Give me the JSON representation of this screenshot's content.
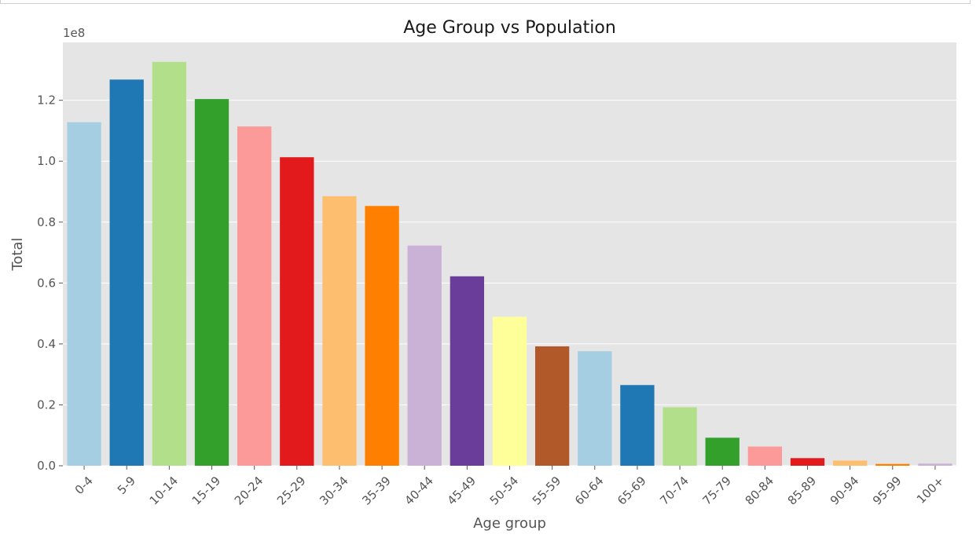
{
  "chart_data": {
    "type": "bar",
    "title": "Age Group vs Population",
    "xlabel": "Age group",
    "ylabel": "Total",
    "y_offset_text": "1e8",
    "ylim": [
      0,
      1.39
    ],
    "yticks": [
      0.0,
      0.2,
      0.4,
      0.6,
      0.8,
      1.0,
      1.2
    ],
    "ytick_labels": [
      "0.0",
      "0.2",
      "0.4",
      "0.6",
      "0.8",
      "1.0",
      "1.2"
    ],
    "grid": true,
    "legend": "none",
    "background": "#e5e5e5",
    "categories": [
      "0-4",
      "5-9",
      "10-14",
      "15-19",
      "20-24",
      "25-29",
      "30-34",
      "35-39",
      "40-44",
      "45-49",
      "50-54",
      "55-59",
      "60-64",
      "65-69",
      "70-74",
      "75-79",
      "80-84",
      "85-89",
      "90-94",
      "95-99",
      "100+"
    ],
    "values": [
      1.128,
      1.268,
      1.326,
      1.204,
      1.114,
      1.013,
      0.885,
      0.853,
      0.723,
      0.622,
      0.489,
      0.392,
      0.376,
      0.265,
      0.192,
      0.092,
      0.063,
      0.025,
      0.017,
      0.006,
      0.007
    ],
    "colors": [
      "#a6cee3",
      "#1f78b4",
      "#b2df8a",
      "#33a02c",
      "#fb9a99",
      "#e31a1c",
      "#fdbf6f",
      "#ff7f00",
      "#cab2d6",
      "#6a3d9a",
      "#ffff99",
      "#b15928",
      "#a6cee3",
      "#1f78b4",
      "#b2df8a",
      "#33a02c",
      "#fb9a99",
      "#e31a1c",
      "#fdbf6f",
      "#ff7f00",
      "#cab2d6"
    ]
  }
}
